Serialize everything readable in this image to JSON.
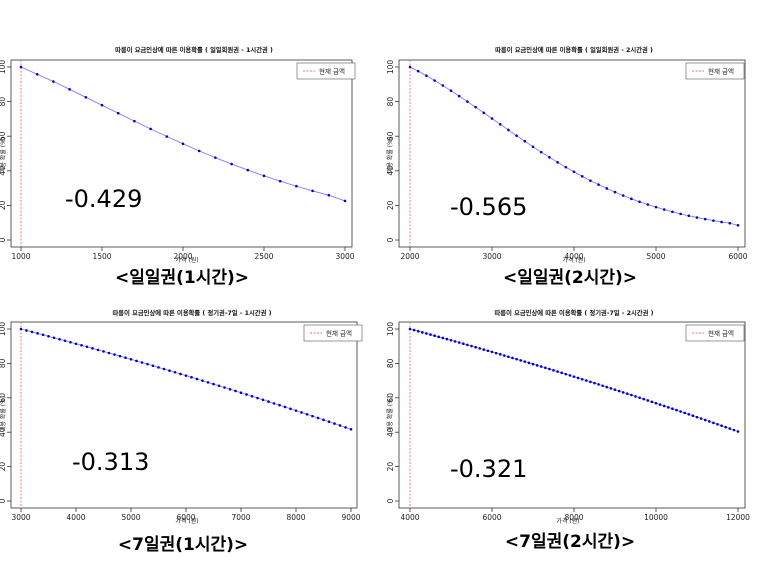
{
  "panels": [
    {
      "caption": "<일일권(1시간)>",
      "chart_data": {
        "type": "line",
        "title": "따릉이 요금인상에 따른 이용확률 ( 일일회원권 - 1시간권 )",
        "xlabel": "가격 (원)",
        "ylabel": "이용 확률 (%)",
        "legend": "현재 금액",
        "legend_position": "top-right",
        "xlim": [
          1000,
          3000
        ],
        "ylim": [
          0,
          100
        ],
        "xticks": [
          1000,
          1500,
          2000,
          2500,
          3000
        ],
        "yticks": [
          0,
          20,
          40,
          60,
          80,
          100
        ],
        "grid": false,
        "reference_x": 1000,
        "annotation": "-0.429",
        "series": [
          {
            "x": [
              1000,
              1100,
              1200,
              1300,
              1400,
              1500,
              1600,
              1700,
              1800,
              1900,
              2000,
              2100,
              2200,
              2300,
              2400,
              2500,
              2600,
              2700,
              2800,
              2900,
              3000
            ],
            "values": [
              100,
              95.8,
              91.6,
              87.1,
              82.5,
              77.9,
              73.3,
              68.7,
              64.2,
              59.8,
              55.6,
              51.5,
              47.6,
              43.9,
              40.4,
              37.1,
              34.0,
              31.1,
              28.4,
              25.9,
              22.6
            ]
          }
        ]
      }
    },
    {
      "caption": "<일일권(2시간)>",
      "chart_data": {
        "type": "line",
        "title": "따릉이 요금인상에 따른 이용확률 ( 일일회원권 - 2시간권 )",
        "xlabel": "가격 (원)",
        "ylabel": "이용 확률 (%)",
        "legend": "현재 금액",
        "legend_position": "top-right",
        "xlim": [
          2000,
          6000
        ],
        "ylim": [
          0,
          100
        ],
        "xticks": [
          2000,
          3000,
          4000,
          5000,
          6000
        ],
        "yticks": [
          0,
          20,
          40,
          60,
          80,
          100
        ],
        "grid": false,
        "reference_x": 2000,
        "annotation": "-0.565",
        "series": [
          {
            "x": [
              2000,
              2100,
              2200,
              2300,
              2400,
              2500,
              2600,
              2700,
              2800,
              2900,
              3000,
              3100,
              3200,
              3300,
              3400,
              3500,
              3600,
              3700,
              3800,
              3900,
              4000,
              4100,
              4200,
              4300,
              4400,
              4500,
              4600,
              4700,
              4800,
              4900,
              5000,
              5100,
              5200,
              5300,
              5400,
              5500,
              5600,
              5700,
              5800,
              5900,
              6000
            ],
            "values": [
              100,
              97.6,
              95.0,
              92.2,
              89.3,
              86.3,
              83.2,
              80.0,
              76.8,
              73.5,
              70.2,
              66.9,
              63.6,
              60.3,
              57.1,
              53.9,
              50.8,
              47.8,
              44.9,
              42.1,
              39.4,
              36.8,
              34.3,
              32.0,
              29.8,
              27.7,
              25.7,
              23.8,
              22.1,
              20.5,
              19.0,
              17.6,
              16.3,
              15.1,
              14.0,
              13.0,
              12.1,
              11.2,
              10.4,
              9.7,
              8.5
            ]
          }
        ]
      }
    },
    {
      "caption": "<7일권(1시간)>",
      "chart_data": {
        "type": "line",
        "title": "따릉이 요금인상에 따른 이용확률 ( 정기권-7일 - 1시간권 )",
        "xlabel": "가격 (원)",
        "ylabel": "이용 확률 (%)",
        "legend": "현재 금액",
        "legend_position": "top-right",
        "xlim": [
          3000,
          9000
        ],
        "ylim": [
          0,
          100
        ],
        "xticks": [
          3000,
          4000,
          5000,
          6000,
          7000,
          8000,
          9000
        ],
        "yticks": [
          0,
          20,
          40,
          60,
          80,
          100
        ],
        "grid": false,
        "reference_x": 3000,
        "annotation": "-0.313",
        "series": [
          {
            "x_start": 3000,
            "x_end": 9000,
            "points": 61,
            "y_start": 100,
            "y_end": 41.7,
            "curvature": 0.07
          }
        ]
      }
    },
    {
      "caption": "<7일권(2시간)>",
      "chart_data": {
        "type": "line",
        "title": "따릉이 요금인상에 따른 이용확률 ( 정기권-7일 - 2시간권 )",
        "xlabel": "가격 (원)",
        "ylabel": "이용 확률 (%)",
        "legend": "현재 금액",
        "legend_position": "top-right",
        "xlim": [
          4000,
          12000
        ],
        "ylim": [
          0,
          100
        ],
        "xticks": [
          4000,
          6000,
          8000,
          10000,
          12000
        ],
        "yticks": [
          0,
          20,
          40,
          60,
          80,
          100
        ],
        "grid": false,
        "reference_x": 4000,
        "annotation": "-0.321",
        "series": [
          {
            "x_start": 4000,
            "x_end": 12000,
            "points": 81,
            "y_start": 100,
            "y_end": 40.4,
            "curvature": 0.07
          }
        ]
      }
    }
  ],
  "colors": {
    "line": "#7f7fff",
    "points": "#0000cc",
    "reference": "#ff6b6b",
    "axis": "#333333"
  }
}
